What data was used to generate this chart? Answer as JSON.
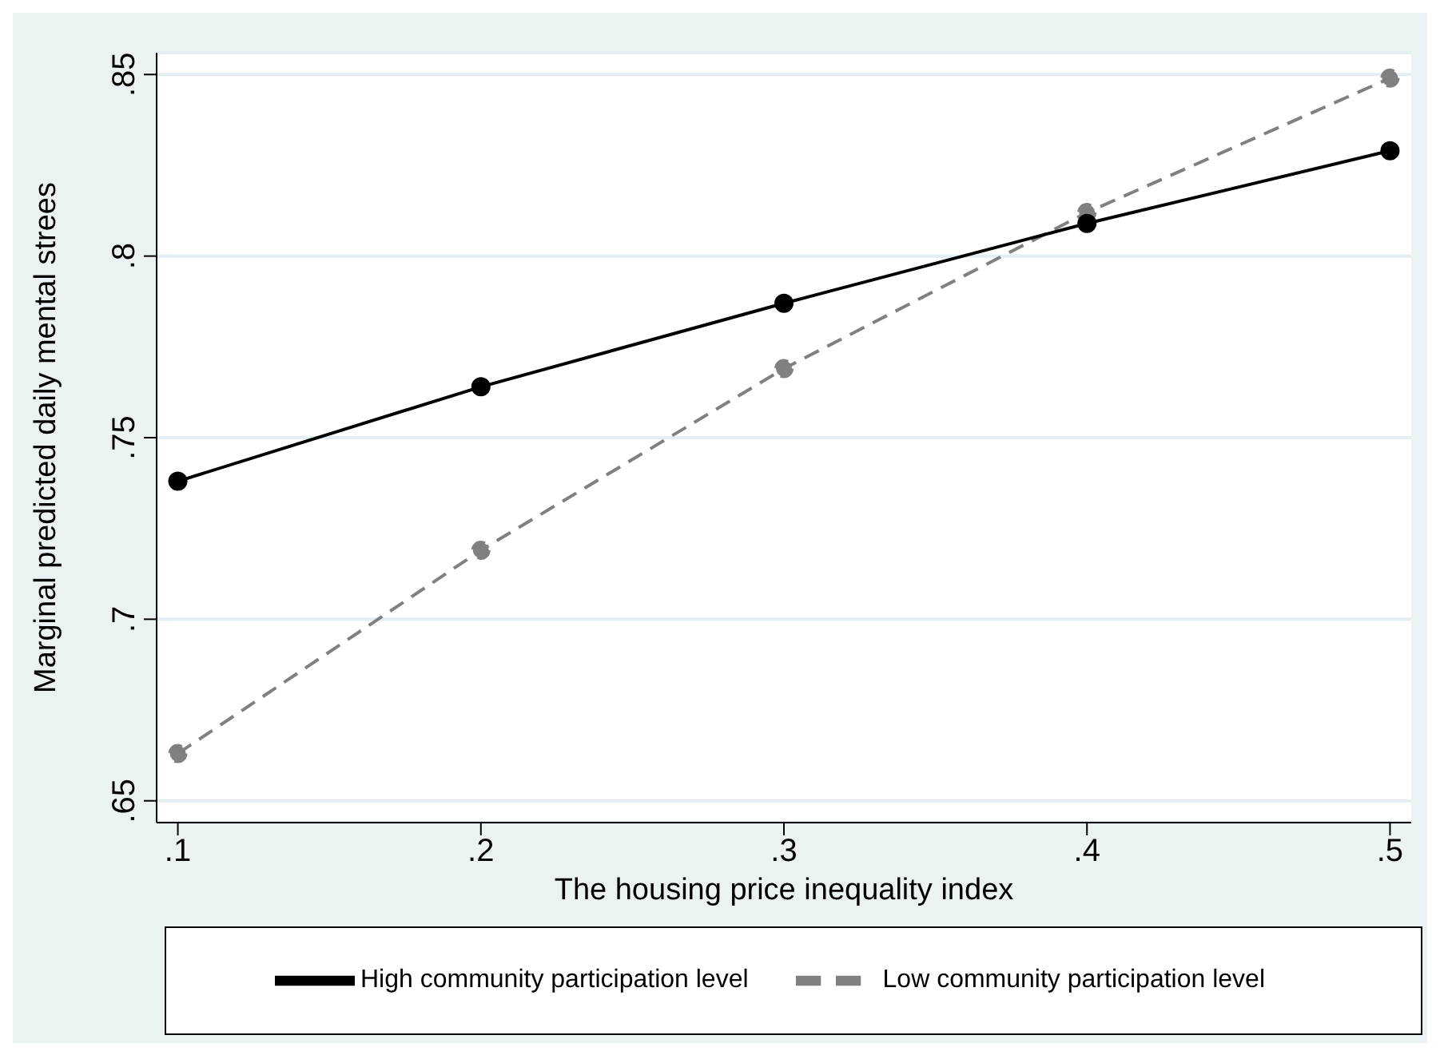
{
  "chart_data": {
    "type": "line",
    "xlabel": "The housing price inequality index",
    "ylabel": "Marginal predicted daily mental strees",
    "x": [
      0.1,
      0.2,
      0.3,
      0.4,
      0.5
    ],
    "series": [
      {
        "name": "Low community participation level",
        "color": "#808080",
        "line_style": "dashed",
        "values": [
          0.663,
          0.719,
          0.769,
          0.812,
          0.849
        ]
      },
      {
        "name": "High community participation level",
        "color": "#000000",
        "line_style": "solid",
        "values": [
          0.738,
          0.764,
          0.787,
          0.809,
          0.829
        ]
      }
    ],
    "xlim": [
      0.093,
      0.507
    ],
    "xticks": [
      {
        "value": 0.1,
        "label": ".1"
      },
      {
        "value": 0.2,
        "label": ".2"
      },
      {
        "value": 0.3,
        "label": ".3"
      },
      {
        "value": 0.4,
        "label": ".4"
      },
      {
        "value": 0.5,
        "label": ".5"
      }
    ],
    "ylim": [
      0.644,
      0.856
    ],
    "yticks": [
      {
        "value": 0.65,
        "label": ".65"
      },
      {
        "value": 0.7,
        "label": ".7"
      },
      {
        "value": 0.75,
        "label": ".75"
      },
      {
        "value": 0.8,
        "label": ".8"
      },
      {
        "value": 0.85,
        "label": ".85"
      }
    ],
    "grid": "y",
    "legend": "bottom",
    "marker": "circle"
  }
}
